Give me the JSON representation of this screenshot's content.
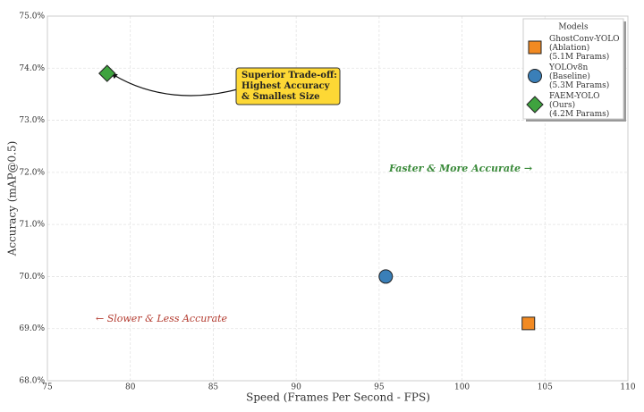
{
  "chart_data": {
    "type": "scatter",
    "xlabel": "Speed (Frames Per Second - FPS)",
    "ylabel": "Accuracy (mAP@0.5)",
    "xlim": [
      75,
      110
    ],
    "xticks": [
      75,
      80,
      85,
      90,
      95,
      100,
      105,
      110
    ],
    "ylim": [
      68,
      75
    ],
    "yticks": [
      {
        "value": 68,
        "label": "68.0%"
      },
      {
        "value": 69,
        "label": "69.0%"
      },
      {
        "value": 70,
        "label": "70.0%"
      },
      {
        "value": 71,
        "label": "71.0%"
      },
      {
        "value": 72,
        "label": "72.0%"
      },
      {
        "value": 73,
        "label": "73.0%"
      },
      {
        "value": 74,
        "label": "74.0%"
      },
      {
        "value": 75,
        "label": "75.0%"
      }
    ],
    "grid": true,
    "legend_title": "Models",
    "legend": "upper right",
    "series": [
      {
        "name": "GhostConv-YOLO\n(Ablation)\n(5.1M Params)",
        "color": "#f28a22",
        "marker": "square",
        "x": [
          104.0
        ],
        "values": [
          69.1
        ]
      },
      {
        "name": "YOLOv8n\n(Baseline)\n(5.3M Params)",
        "color": "#3a7fb8",
        "marker": "circle",
        "x": [
          95.4
        ],
        "values": [
          70.0
        ]
      },
      {
        "name": "FAEM-YOLO\n(Ours)\n(4.2M Params)",
        "color": "#3fa33f",
        "marker": "diamond",
        "x": [
          78.6
        ],
        "values": [
          73.9
        ]
      }
    ],
    "annotations": [
      {
        "text": "Superior Trade-off:\nHighest Accuracy\n& Smallest Size"
      },
      {
        "text": "Faster & More Accurate →"
      },
      {
        "text": "← Slower & Less Accurate"
      }
    ]
  }
}
